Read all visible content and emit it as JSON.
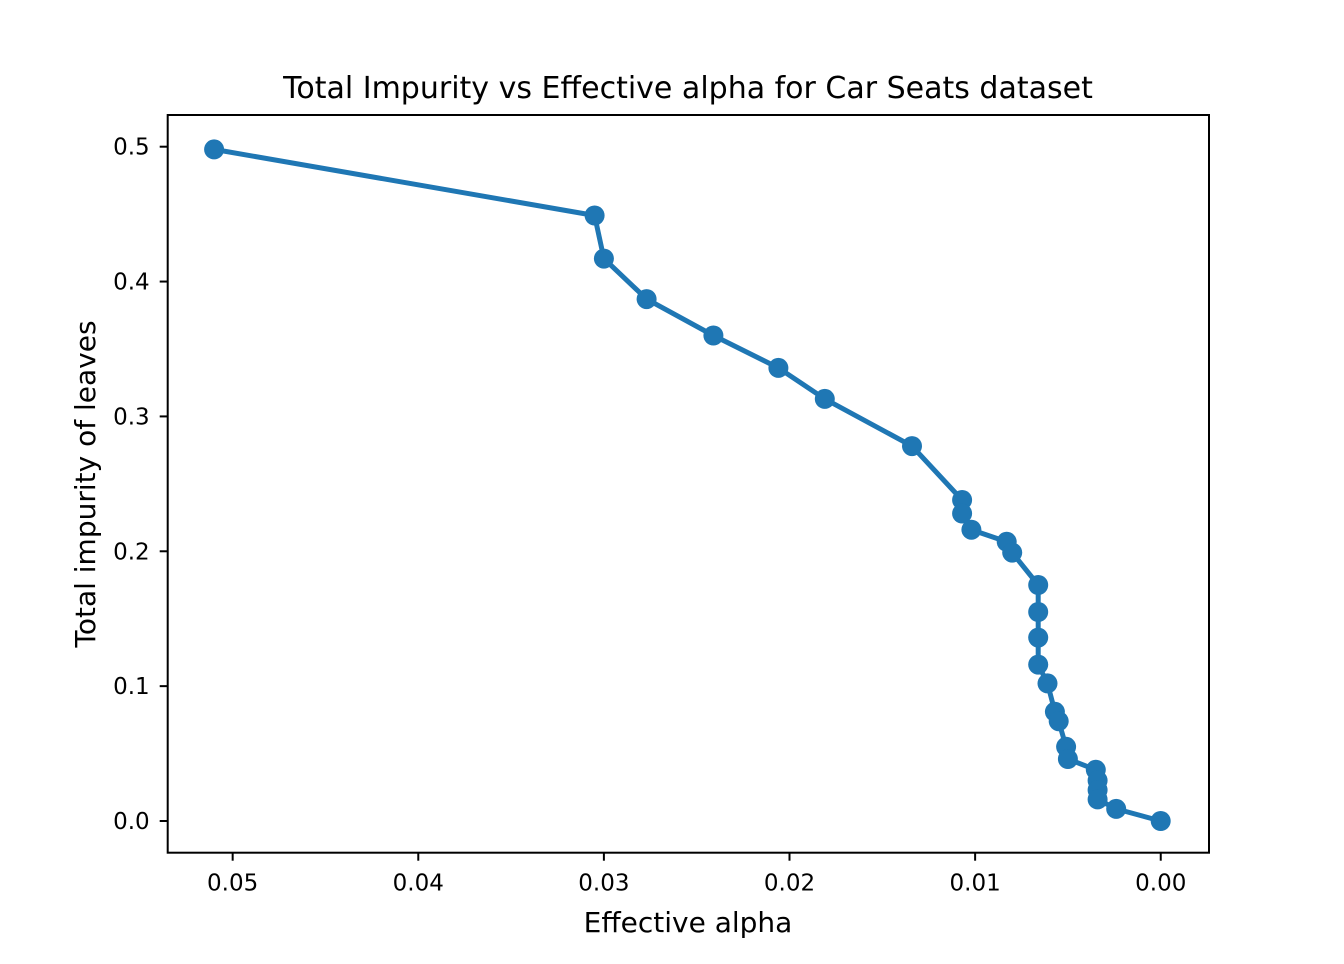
{
  "chart_data": {
    "type": "line",
    "title": "Total Impurity vs Effective alpha for Car Seats dataset",
    "xlabel": "Effective alpha",
    "ylabel": "Total impurity of leaves",
    "x_axis_inverted": true,
    "xlim": [
      0.0535,
      -0.0026
    ],
    "ylim": [
      -0.0235,
      0.5235
    ],
    "grid": false,
    "legend": "none",
    "line_color": "#1f77b4",
    "marker": "o",
    "marker_radius_px": 10,
    "x_ticks": [
      {
        "value": 0.05,
        "label": "0.05"
      },
      {
        "value": 0.04,
        "label": "0.04"
      },
      {
        "value": 0.03,
        "label": "0.03"
      },
      {
        "value": 0.02,
        "label": "0.02"
      },
      {
        "value": 0.01,
        "label": "0.01"
      },
      {
        "value": 0.0,
        "label": "0.00"
      }
    ],
    "y_ticks": [
      {
        "value": 0.0,
        "label": "0.0"
      },
      {
        "value": 0.1,
        "label": "0.1"
      },
      {
        "value": 0.2,
        "label": "0.2"
      },
      {
        "value": 0.3,
        "label": "0.3"
      },
      {
        "value": 0.4,
        "label": "0.4"
      },
      {
        "value": 0.5,
        "label": "0.5"
      }
    ],
    "series": [
      {
        "x": [
          0.051,
          0.0305,
          0.03,
          0.0277,
          0.0241,
          0.0206,
          0.0181,
          0.0134,
          0.0107,
          0.0107,
          0.0102,
          0.0083,
          0.008,
          0.0066,
          0.0066,
          0.0066,
          0.0066,
          0.0061,
          0.0057,
          0.0055,
          0.0051,
          0.005,
          0.0035,
          0.0034,
          0.0034,
          0.0034,
          0.0024,
          0.0
        ],
        "y": [
          0.498,
          0.449,
          0.417,
          0.387,
          0.36,
          0.336,
          0.313,
          0.278,
          0.238,
          0.228,
          0.216,
          0.207,
          0.199,
          0.175,
          0.155,
          0.136,
          0.116,
          0.102,
          0.081,
          0.074,
          0.055,
          0.046,
          0.038,
          0.03,
          0.023,
          0.016,
          0.009,
          0.0
        ]
      }
    ]
  }
}
